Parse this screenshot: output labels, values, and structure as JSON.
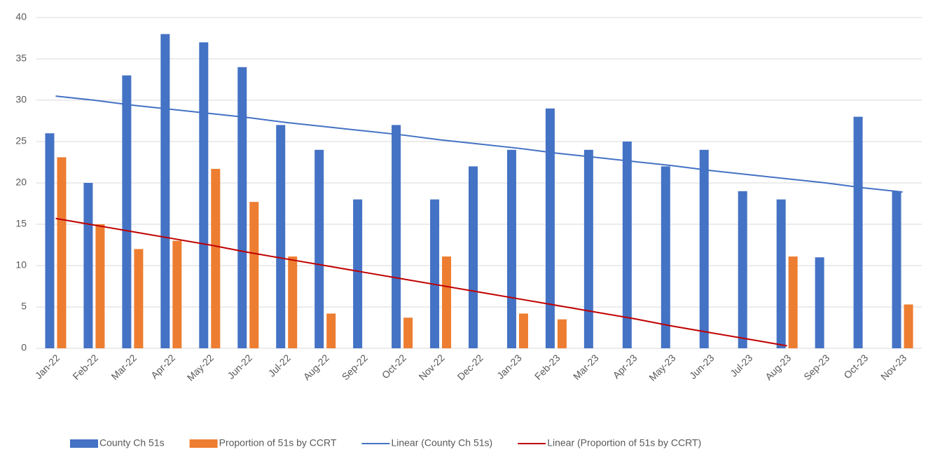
{
  "chart_data": {
    "type": "bar",
    "categories": [
      "Jan-22",
      "Feb-22",
      "Mar-22",
      "Apr-22",
      "May-22",
      "Jun-22",
      "Jul-22",
      "Aug-22",
      "Sep-22",
      "Oct-22",
      "Nov-22",
      "Dec-22",
      "Jan-23",
      "Feb-23",
      "Mar-23",
      "Apr-23",
      "May-23",
      "Jun-23",
      "Jul-23",
      "Aug-23",
      "Sep-23",
      "Oct-23",
      "Nov-23"
    ],
    "series": [
      {
        "name": "County Ch 51s",
        "type": "bar",
        "color": "#4472c4",
        "values": [
          26,
          20,
          33,
          38,
          37,
          34,
          27,
          24,
          18,
          27,
          18,
          22,
          24,
          29,
          24,
          25,
          22,
          24,
          19,
          18,
          11,
          28,
          19
        ]
      },
      {
        "name": "Proportion of 51s by CCRT",
        "type": "bar",
        "color": "#ed7d31",
        "values": [
          23.1,
          15,
          12,
          13,
          21.7,
          17.7,
          11.1,
          4.2,
          null,
          3.7,
          11.1,
          null,
          4.2,
          3.5,
          null,
          null,
          null,
          null,
          null,
          11.1,
          null,
          null,
          5.3
        ]
      },
      {
        "name": "Linear (County Ch 51s)",
        "type": "line",
        "color": "#4472c4",
        "values": [
          30.5,
          30.0,
          29.4,
          28.9,
          28.4,
          27.9,
          27.3,
          26.8,
          26.3,
          25.8,
          25.2,
          24.7,
          24.2,
          23.6,
          23.1,
          22.6,
          22.1,
          21.5,
          21.0,
          20.5,
          20.0,
          19.4,
          18.9
        ]
      },
      {
        "name": "Linear (Proportion of 51s by CCRT)",
        "type": "line",
        "color": "#c00000",
        "values": [
          15.7,
          14.9,
          14.1,
          13.3,
          12.5,
          11.6,
          10.8,
          10.0,
          9.2,
          8.4,
          7.6,
          6.8,
          6.0,
          5.2,
          4.4,
          3.6,
          2.7,
          1.9,
          1.1,
          0.3,
          null,
          null,
          null
        ]
      }
    ],
    "ylim": [
      0,
      40
    ],
    "yticks": [
      0,
      5,
      10,
      15,
      20,
      25,
      30,
      35,
      40
    ],
    "grid": true,
    "legend": "bottom"
  }
}
